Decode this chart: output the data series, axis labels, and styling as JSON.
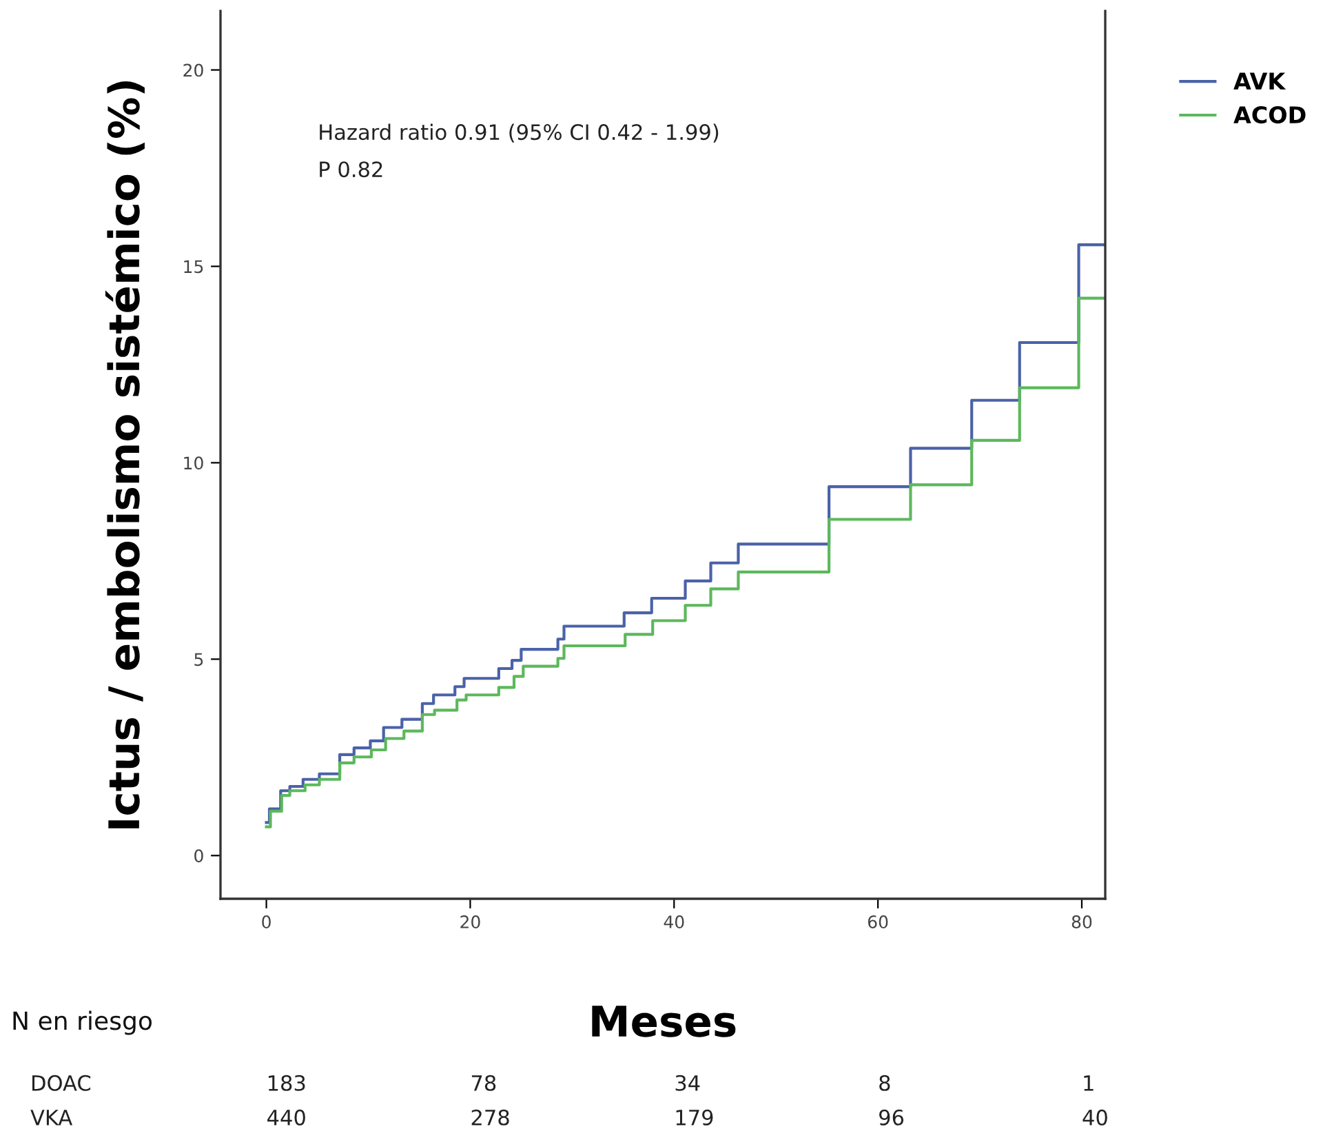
{
  "chart_data": {
    "type": "step",
    "xlabel": "Meses",
    "ylabel": "Ictus / embolismo sistémico (%)",
    "xlim": [
      -4.5,
      82.3
    ],
    "ylim": [
      -1.1,
      21.5
    ],
    "xticks": [
      0,
      20,
      40,
      60,
      80
    ],
    "yticks": [
      0,
      5,
      10,
      15,
      20
    ],
    "grid": false,
    "legend": "top right",
    "marker": "none",
    "line_style": "solid",
    "series": [
      {
        "name": "AVK",
        "color": "#4a62a8",
        "x": [
          0,
          0.3,
          1.4,
          2.3,
          3.6,
          5.2,
          7.2,
          8.6,
          10.2,
          11.5,
          13.3,
          15.3,
          16.4,
          18.5,
          19.4,
          22.8,
          24.1,
          25.0,
          28.6,
          29.2,
          35.1,
          37.8,
          41.1,
          43.6,
          46.3,
          55.2,
          63.2,
          69.2,
          73.9,
          79.7,
          82.3
        ],
        "values": [
          0.84,
          1.19,
          1.65,
          1.76,
          1.94,
          2.08,
          2.57,
          2.74,
          2.92,
          3.26,
          3.47,
          3.87,
          4.09,
          4.3,
          4.51,
          4.76,
          4.97,
          5.25,
          5.51,
          5.84,
          6.18,
          6.55,
          6.99,
          7.45,
          7.93,
          9.39,
          10.37,
          11.59,
          13.06,
          15.55,
          15.55
        ]
      },
      {
        "name": "ACOD",
        "color": "#5cb85c",
        "x": [
          0,
          0.4,
          1.5,
          2.3,
          3.8,
          5.2,
          7.2,
          8.6,
          10.3,
          11.7,
          13.5,
          15.3,
          16.5,
          18.7,
          19.6,
          22.8,
          24.3,
          25.2,
          28.6,
          29.2,
          35.2,
          37.9,
          41.1,
          43.6,
          46.3,
          55.2,
          63.2,
          69.2,
          73.9,
          79.7,
          82.3
        ],
        "values": [
          0.73,
          1.13,
          1.53,
          1.65,
          1.8,
          1.94,
          2.36,
          2.51,
          2.69,
          2.98,
          3.17,
          3.59,
          3.7,
          3.96,
          4.09,
          4.28,
          4.56,
          4.82,
          5.02,
          5.34,
          5.63,
          5.98,
          6.37,
          6.79,
          7.22,
          8.56,
          9.44,
          10.57,
          11.91,
          14.19,
          14.19
        ]
      }
    ],
    "annotations": [
      "Hazard ratio 0.91 (95% CI 0.42 - 1.99)",
      "P 0.82",
      "N en riesgo",
      "DOAC",
      "183",
      "78",
      "34",
      "8",
      "1",
      "VKA",
      "440",
      "278",
      "179",
      "96",
      "40"
    ]
  }
}
